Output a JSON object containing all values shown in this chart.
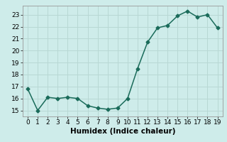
{
  "x": [
    0,
    1,
    2,
    3,
    4,
    5,
    6,
    7,
    8,
    9,
    10,
    11,
    12,
    13,
    14,
    15,
    16,
    17,
    18,
    19
  ],
  "y": [
    16.8,
    15.0,
    16.1,
    16.0,
    16.1,
    16.0,
    15.4,
    15.2,
    15.1,
    15.2,
    16.0,
    18.5,
    20.7,
    21.9,
    22.1,
    22.9,
    23.3,
    22.8,
    23.0,
    21.9
  ],
  "xlabel": "Humidex (Indice chaleur)",
  "xlim": [
    -0.5,
    19.5
  ],
  "ylim": [
    14.5,
    23.75
  ],
  "yticks": [
    15,
    16,
    17,
    18,
    19,
    20,
    21,
    22,
    23
  ],
  "xticks": [
    0,
    1,
    2,
    3,
    4,
    5,
    6,
    7,
    8,
    9,
    10,
    11,
    12,
    13,
    14,
    15,
    16,
    17,
    18,
    19
  ],
  "line_color": "#1a6b5a",
  "marker": "D",
  "marker_size": 2.5,
  "bg_color": "#ceecea",
  "grid_color": "#b8d8d4",
  "tick_label_fontsize": 6.5,
  "xlabel_fontsize": 7.5,
  "line_width": 1.1
}
